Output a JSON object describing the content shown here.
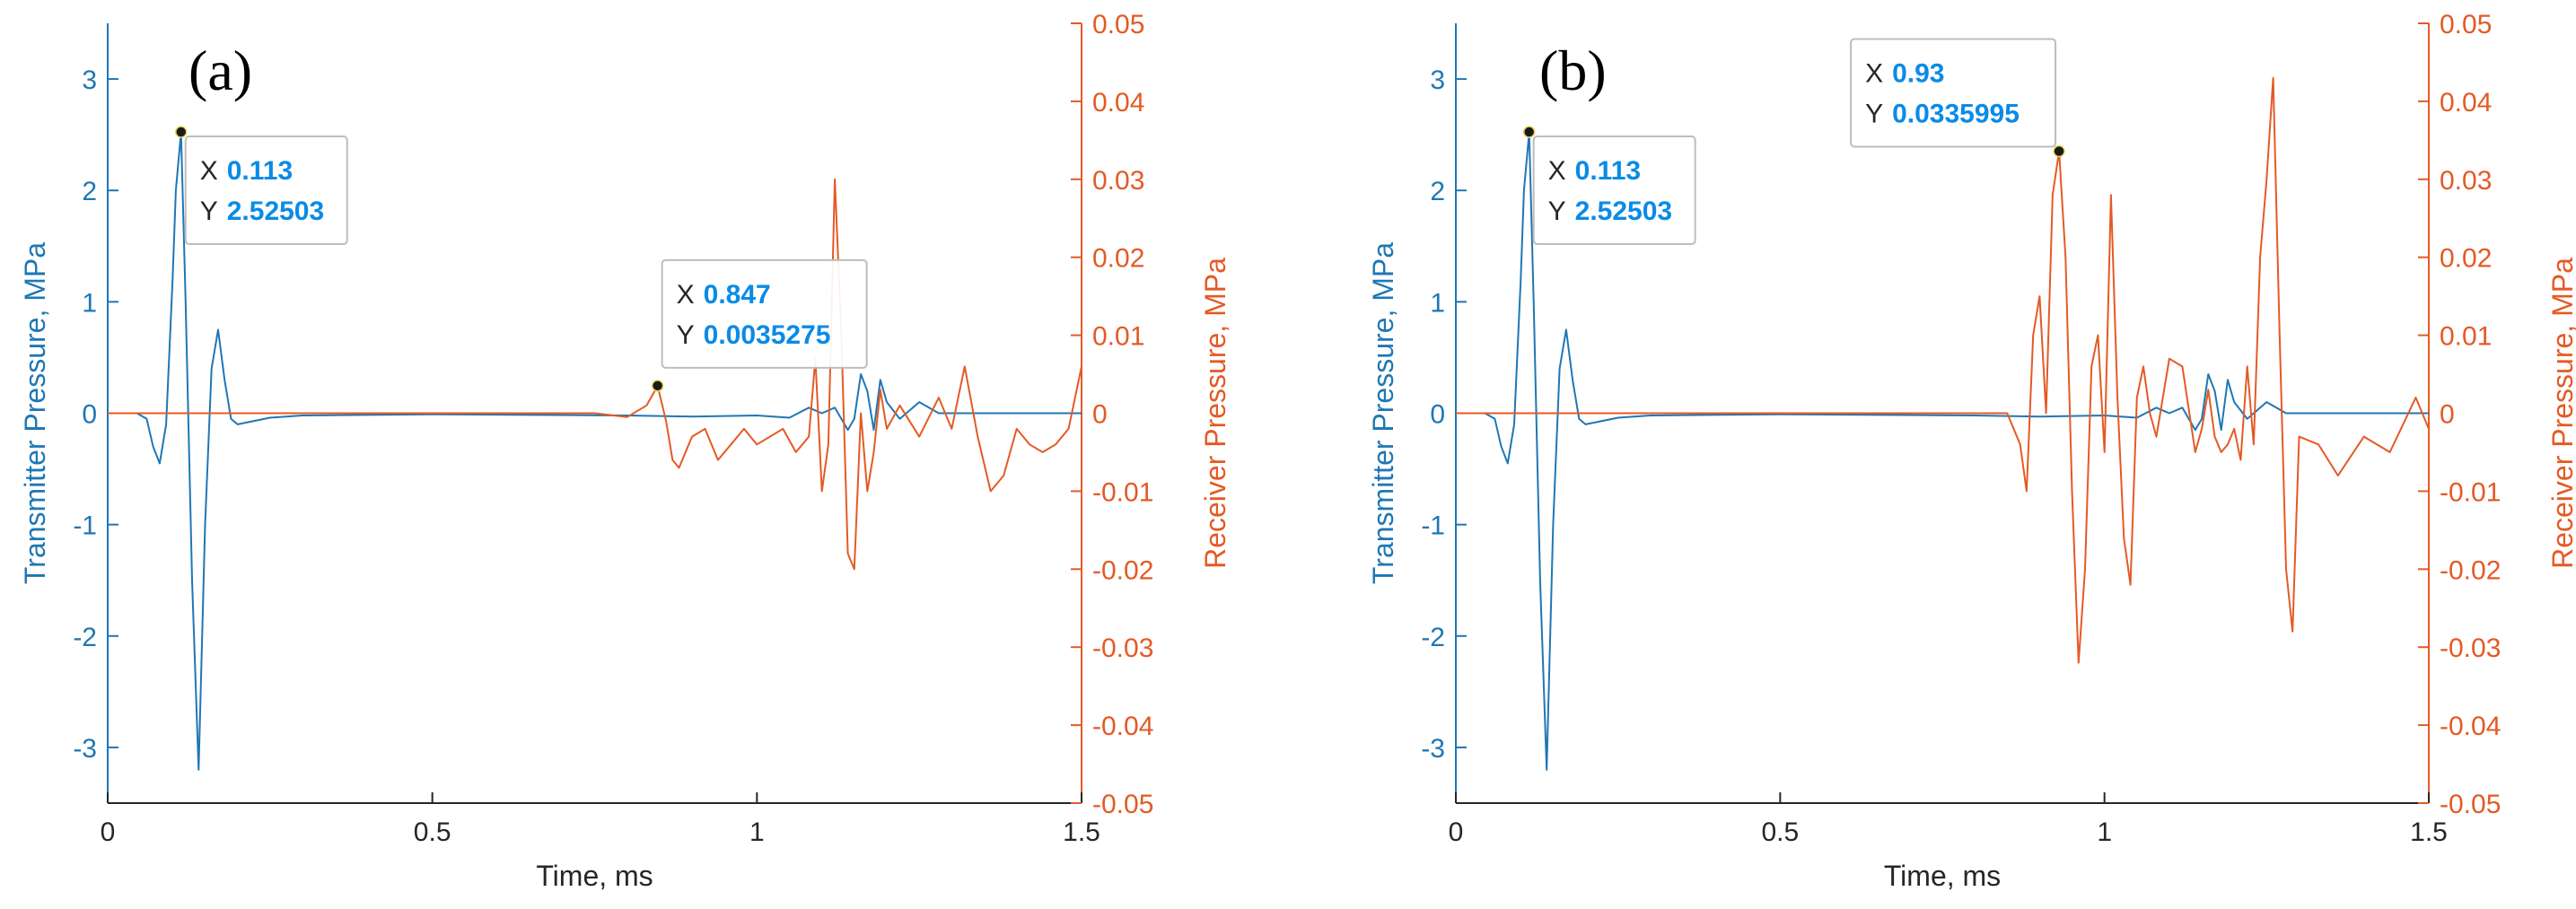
{
  "colors": {
    "transmitter": "#1f77b4",
    "receiver": "#e45a25",
    "tick_text": "#262626",
    "datatip_value": "#0a8be6",
    "marker": "#1a1a1a"
  },
  "chart_data": [
    {
      "type": "line",
      "panel_label": "(a)",
      "xlabel": "Time, ms",
      "ylabel_left": "Transmitter Pressure, MPa",
      "ylabel_right": "Receiver Pressure, MPa",
      "xlim": [
        0,
        1.5
      ],
      "ylim_left": [
        -3.5,
        3.5
      ],
      "ylim_right": [
        -0.05,
        0.05
      ],
      "x_ticks": [
        "0",
        "0.5",
        "1",
        "1.5"
      ],
      "y_ticks_left": [
        "3",
        "2",
        "1",
        "0",
        "-1",
        "-2",
        "-3"
      ],
      "y_ticks_right": [
        "0.05",
        "0.04",
        "0.03",
        "0.02",
        "0.01",
        "0",
        "-0.01",
        "-0.02",
        "-0.03",
        "-0.04",
        "-0.05"
      ],
      "series": [
        {
          "axis": "left",
          "x": [
            0.0,
            0.045,
            0.06,
            0.07,
            0.08,
            0.09,
            0.1,
            0.105,
            0.113,
            0.12,
            0.13,
            0.14,
            0.15,
            0.16,
            0.17,
            0.18,
            0.19,
            0.2,
            0.25,
            0.3,
            0.5,
            0.8,
            0.9,
            1.0,
            1.05,
            1.08,
            1.1,
            1.12,
            1.14,
            1.15,
            1.16,
            1.17,
            1.18,
            1.19,
            1.2,
            1.22,
            1.25,
            1.28,
            1.3,
            1.35,
            1.4,
            1.5
          ],
          "y": [
            0.0,
            0.0,
            -0.05,
            -0.3,
            -0.45,
            -0.1,
            1.2,
            2.0,
            2.52,
            1.0,
            -1.5,
            -3.2,
            -1.0,
            0.4,
            0.75,
            0.3,
            -0.05,
            -0.1,
            -0.04,
            -0.02,
            -0.01,
            -0.02,
            -0.03,
            -0.02,
            -0.04,
            0.05,
            0.0,
            0.05,
            -0.15,
            -0.05,
            0.35,
            0.2,
            -0.15,
            0.3,
            0.1,
            -0.05,
            0.1,
            0.0,
            0.0,
            0.0,
            0.0,
            0.0
          ]
        },
        {
          "axis": "right",
          "x": [
            0.0,
            0.5,
            0.75,
            0.8,
            0.83,
            0.847,
            0.86,
            0.87,
            0.88,
            0.9,
            0.92,
            0.94,
            0.96,
            0.98,
            1.0,
            1.02,
            1.04,
            1.06,
            1.08,
            1.09,
            1.1,
            1.11,
            1.12,
            1.13,
            1.14,
            1.15,
            1.16,
            1.17,
            1.18,
            1.19,
            1.2,
            1.22,
            1.25,
            1.28,
            1.3,
            1.32,
            1.34,
            1.36,
            1.38,
            1.4,
            1.42,
            1.44,
            1.46,
            1.48,
            1.5
          ],
          "y": [
            0.0,
            0.0,
            0.0,
            -0.0005,
            0.001,
            0.0035,
            -0.001,
            -0.006,
            -0.007,
            -0.003,
            -0.002,
            -0.006,
            -0.004,
            -0.002,
            -0.004,
            -0.003,
            -0.002,
            -0.005,
            -0.003,
            0.007,
            -0.01,
            -0.004,
            0.03,
            0.01,
            -0.018,
            -0.02,
            0.0,
            -0.01,
            -0.005,
            0.003,
            -0.002,
            0.001,
            -0.003,
            0.002,
            -0.002,
            0.006,
            -0.003,
            -0.01,
            -0.008,
            -0.002,
            -0.004,
            -0.005,
            -0.004,
            -0.002,
            0.006
          ]
        }
      ],
      "datatips": [
        {
          "axis": "left",
          "x": 0.113,
          "y": 2.52503,
          "x_label": "X",
          "y_label": "Y",
          "x_text": "0.113",
          "y_text": "2.52503"
        },
        {
          "axis": "right",
          "x": 0.847,
          "y": 0.0035275,
          "x_label": "X",
          "y_label": "Y",
          "x_text": "0.847",
          "y_text": "0.0035275"
        }
      ]
    },
    {
      "type": "line",
      "panel_label": "(b)",
      "xlabel": "Time, ms",
      "ylabel_left": "Transmitter Pressure, MPa",
      "ylabel_right": "Receiver Pressure, MPa",
      "xlim": [
        0,
        1.5
      ],
      "ylim_left": [
        -3.5,
        3.5
      ],
      "ylim_right": [
        -0.05,
        0.05
      ],
      "x_ticks": [
        "0",
        "0.5",
        "1",
        "1.5"
      ],
      "y_ticks_left": [
        "3",
        "2",
        "1",
        "0",
        "-1",
        "-2",
        "-3"
      ],
      "y_ticks_right": [
        "0.05",
        "0.04",
        "0.03",
        "0.02",
        "0.01",
        "0",
        "-0.01",
        "-0.02",
        "-0.03",
        "-0.04",
        "-0.05"
      ],
      "series": [
        {
          "axis": "left",
          "x": [
            0.0,
            0.045,
            0.06,
            0.07,
            0.08,
            0.09,
            0.1,
            0.105,
            0.113,
            0.12,
            0.13,
            0.14,
            0.15,
            0.16,
            0.17,
            0.18,
            0.19,
            0.2,
            0.25,
            0.3,
            0.5,
            0.8,
            0.9,
            1.0,
            1.05,
            1.08,
            1.1,
            1.12,
            1.14,
            1.15,
            1.16,
            1.17,
            1.18,
            1.19,
            1.2,
            1.22,
            1.25,
            1.28,
            1.3,
            1.35,
            1.4,
            1.5
          ],
          "y": [
            0.0,
            0.0,
            -0.05,
            -0.3,
            -0.45,
            -0.1,
            1.2,
            2.0,
            2.52,
            1.0,
            -1.5,
            -3.2,
            -1.0,
            0.4,
            0.75,
            0.3,
            -0.05,
            -0.1,
            -0.04,
            -0.02,
            -0.01,
            -0.02,
            -0.03,
            -0.02,
            -0.04,
            0.05,
            0.0,
            0.05,
            -0.15,
            -0.05,
            0.35,
            0.2,
            -0.15,
            0.3,
            0.1,
            -0.05,
            0.1,
            0.0,
            0.0,
            0.0,
            0.0,
            0.0
          ]
        },
        {
          "axis": "right",
          "x": [
            0.0,
            0.85,
            0.87,
            0.88,
            0.89,
            0.9,
            0.91,
            0.92,
            0.93,
            0.94,
            0.95,
            0.96,
            0.97,
            0.98,
            0.99,
            1.0,
            1.01,
            1.02,
            1.03,
            1.04,
            1.05,
            1.06,
            1.07,
            1.08,
            1.09,
            1.1,
            1.12,
            1.14,
            1.15,
            1.16,
            1.17,
            1.18,
            1.19,
            1.2,
            1.21,
            1.22,
            1.23,
            1.24,
            1.25,
            1.26,
            1.27,
            1.28,
            1.29,
            1.3,
            1.33,
            1.36,
            1.4,
            1.44,
            1.48,
            1.5
          ],
          "y": [
            0.0,
            0.0,
            -0.004,
            -0.01,
            0.01,
            0.015,
            0.0,
            0.028,
            0.0336,
            0.02,
            -0.01,
            -0.032,
            -0.02,
            0.006,
            0.01,
            -0.005,
            0.028,
            0.002,
            -0.016,
            -0.022,
            0.002,
            0.006,
            0.0,
            -0.003,
            0.002,
            0.007,
            0.006,
            -0.005,
            -0.002,
            0.003,
            -0.003,
            -0.005,
            -0.004,
            -0.002,
            -0.006,
            0.006,
            -0.004,
            0.02,
            0.03,
            0.043,
            0.01,
            -0.02,
            -0.028,
            -0.003,
            -0.004,
            -0.008,
            -0.003,
            -0.005,
            0.002,
            -0.002
          ]
        }
      ],
      "datatips": [
        {
          "axis": "left",
          "x": 0.113,
          "y": 2.52503,
          "x_label": "X",
          "y_label": "Y",
          "x_text": "0.113",
          "y_text": "2.52503"
        },
        {
          "axis": "right",
          "x": 0.93,
          "y": 0.0335995,
          "x_label": "X",
          "y_label": "Y",
          "x_text": "0.93",
          "y_text": "0.0335995"
        }
      ]
    }
  ]
}
